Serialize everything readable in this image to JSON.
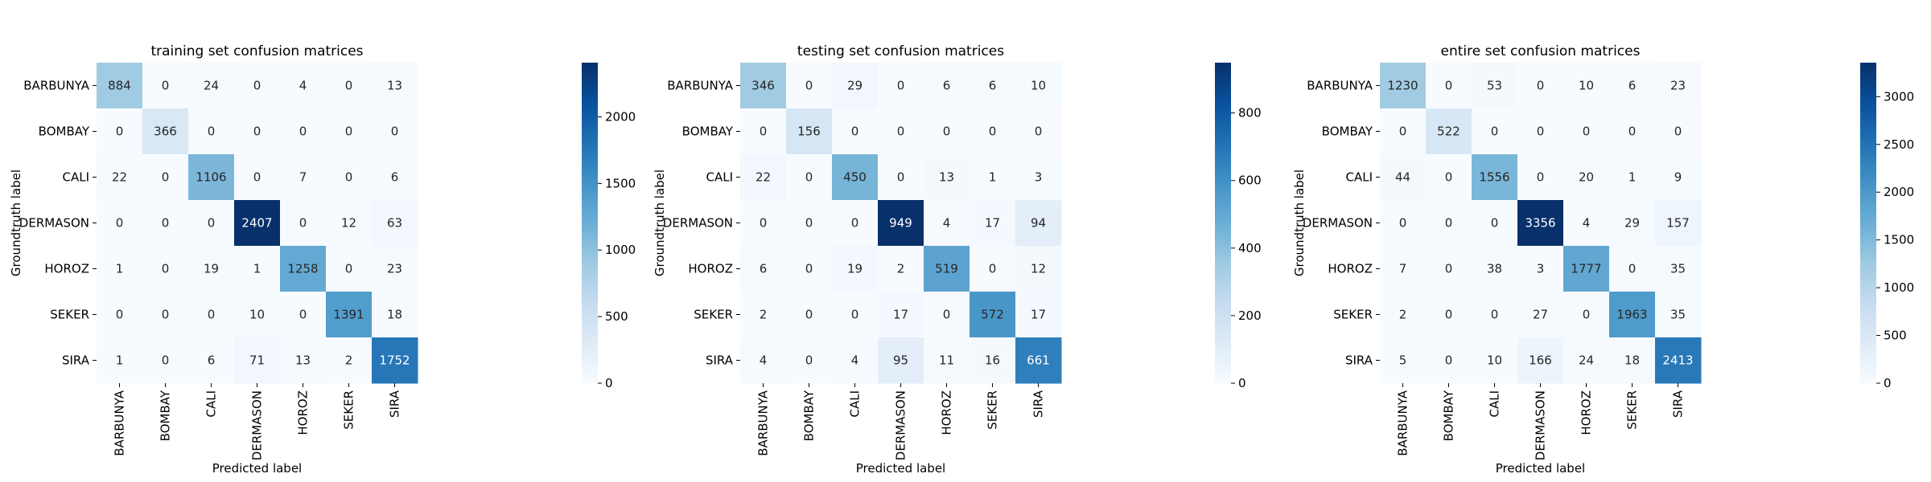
{
  "chart_data": [
    {
      "type": "heatmap",
      "title": "training set confusion matrices",
      "xlabel": "Predicted label",
      "ylabel": "Groundtruth label",
      "x_categories": [
        "BARBUNYA",
        "BOMBAY",
        "CALI",
        "DERMASON",
        "HOROZ",
        "SEKER",
        "SIRA"
      ],
      "y_categories": [
        "BARBUNYA",
        "BOMBAY",
        "CALI",
        "DERMASON",
        "HOROZ",
        "SEKER",
        "SIRA"
      ],
      "values": [
        [
          884,
          0,
          24,
          0,
          4,
          0,
          13
        ],
        [
          0,
          366,
          0,
          0,
          0,
          0,
          0
        ],
        [
          22,
          0,
          1106,
          0,
          7,
          0,
          6
        ],
        [
          0,
          0,
          0,
          2407,
          0,
          12,
          63
        ],
        [
          1,
          0,
          19,
          1,
          1258,
          0,
          23
        ],
        [
          0,
          0,
          0,
          10,
          0,
          1391,
          18
        ],
        [
          1,
          0,
          6,
          71,
          13,
          2,
          1752
        ]
      ],
      "colorbar": {
        "min": 0,
        "max": 2407,
        "ticks": [
          0,
          500,
          1000,
          1500,
          2000
        ]
      },
      "colormap": "Blues"
    },
    {
      "type": "heatmap",
      "title": "testing set confusion matrices",
      "xlabel": "Predicted label",
      "ylabel": "Groundtruth label",
      "x_categories": [
        "BARBUNYA",
        "BOMBAY",
        "CALI",
        "DERMASON",
        "HOROZ",
        "SEKER",
        "SIRA"
      ],
      "y_categories": [
        "BARBUNYA",
        "BOMBAY",
        "CALI",
        "DERMASON",
        "HOROZ",
        "SEKER",
        "SIRA"
      ],
      "values": [
        [
          346,
          0,
          29,
          0,
          6,
          6,
          10
        ],
        [
          0,
          156,
          0,
          0,
          0,
          0,
          0
        ],
        [
          22,
          0,
          450,
          0,
          13,
          1,
          3
        ],
        [
          0,
          0,
          0,
          949,
          4,
          17,
          94
        ],
        [
          6,
          0,
          19,
          2,
          519,
          0,
          12
        ],
        [
          2,
          0,
          0,
          17,
          0,
          572,
          17
        ],
        [
          4,
          0,
          4,
          95,
          11,
          16,
          661
        ]
      ],
      "colorbar": {
        "min": 0,
        "max": 949,
        "ticks": [
          0,
          200,
          400,
          600,
          800
        ]
      },
      "colormap": "Blues"
    },
    {
      "type": "heatmap",
      "title": "entire set confusion matrices",
      "xlabel": "Predicted label",
      "ylabel": "Groundtruth label",
      "x_categories": [
        "BARBUNYA",
        "BOMBAY",
        "CALI",
        "DERMASON",
        "HOROZ",
        "SEKER",
        "SIRA"
      ],
      "y_categories": [
        "BARBUNYA",
        "BOMBAY",
        "CALI",
        "DERMASON",
        "HOROZ",
        "SEKER",
        "SIRA"
      ],
      "values": [
        [
          1230,
          0,
          53,
          0,
          10,
          6,
          23
        ],
        [
          0,
          522,
          0,
          0,
          0,
          0,
          0
        ],
        [
          44,
          0,
          1556,
          0,
          20,
          1,
          9
        ],
        [
          0,
          0,
          0,
          3356,
          4,
          29,
          157
        ],
        [
          7,
          0,
          38,
          3,
          1777,
          0,
          35
        ],
        [
          2,
          0,
          0,
          27,
          0,
          1963,
          35
        ],
        [
          5,
          0,
          10,
          166,
          24,
          18,
          2413
        ]
      ],
      "colorbar": {
        "min": 0,
        "max": 3356,
        "ticks": [
          0,
          500,
          1000,
          1500,
          2000,
          2500,
          3000
        ]
      },
      "colormap": "Blues"
    }
  ]
}
